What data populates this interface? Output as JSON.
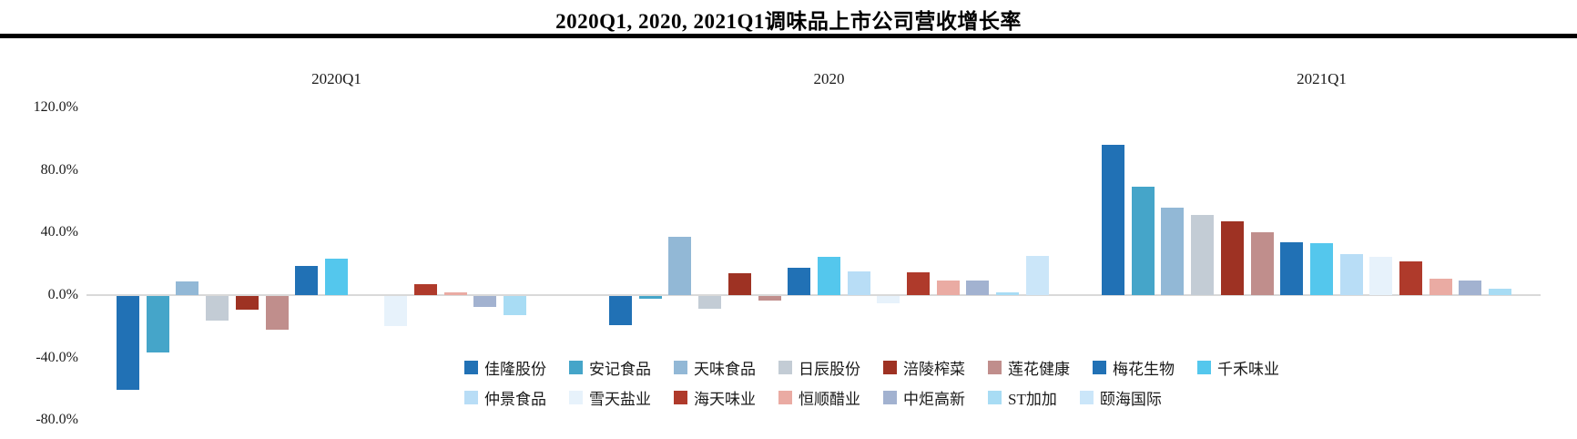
{
  "title": "2020Q1, 2020, 2021Q1调味品上市公司营收增长率",
  "chart_data": {
    "type": "bar",
    "title": "2020Q1, 2020, 2021Q1调味品上市公司营收增长率",
    "groups": [
      "2020Q1",
      "2020",
      "2021Q1"
    ],
    "unit": "percent",
    "ylim": [
      -80,
      120
    ],
    "grid": false,
    "legend_position": "bottom-center-two-rows",
    "axis_color": "#D9D9D9",
    "y_ticks": [
      {
        "label": "120.0%",
        "value": 120
      },
      {
        "label": "80.0%",
        "value": 80
      },
      {
        "label": "40.0%",
        "value": 40
      },
      {
        "label": "0.0%",
        "value": 0
      },
      {
        "label": "-40.0%",
        "value": -40
      },
      {
        "label": "-80.0%",
        "value": -80
      }
    ],
    "series": [
      {
        "name": "佳隆股份",
        "color": "#2171B5",
        "values": [
          -60,
          -18.5,
          96
        ]
      },
      {
        "name": "安记食品",
        "color": "#45A5C9",
        "values": [
          -36,
          -2,
          69
        ]
      },
      {
        "name": "天味食品",
        "color": "#92B8D6",
        "values": [
          9,
          37,
          56
        ]
      },
      {
        "name": "日辰股份",
        "color": "#C3CCD5",
        "values": [
          -15.5,
          -8,
          51.5
        ]
      },
      {
        "name": "涪陵榨菜",
        "color": "#9E3223",
        "values": [
          -9,
          14,
          47
        ]
      },
      {
        "name": "莲花健康",
        "color": "#C08E8C",
        "values": [
          -21.5,
          -3,
          40
        ]
      },
      {
        "name": "梅花生物",
        "color": "#2171B5",
        "values": [
          18.5,
          17.5,
          33.5
        ]
      },
      {
        "name": "千禾味业",
        "color": "#54C7ED",
        "values": [
          23.5,
          24.5,
          33
        ]
      },
      {
        "name": "仲景食品",
        "color": "#B8DDF6",
        "values": [
          null,
          15,
          26
        ]
      },
      {
        "name": "雪天盐业",
        "color": "#E7F2FB",
        "values": [
          -19,
          -4.5,
          24.5
        ]
      },
      {
        "name": "海天味业",
        "color": "#AF3A2B",
        "values": [
          7,
          14.5,
          21.5
        ]
      },
      {
        "name": "恒顺醋业",
        "color": "#EAABA3",
        "values": [
          2,
          9.5,
          10.5
        ]
      },
      {
        "name": "中炬高新",
        "color": "#A2B2D0",
        "values": [
          -7,
          9.5,
          9.5
        ]
      },
      {
        "name": "ST加加",
        "color": "#A8DCF4",
        "values": [
          -12,
          2,
          4
        ]
      },
      {
        "name": "颐海国际",
        "color": "#CBE6F9",
        "values": [
          null,
          25,
          null
        ]
      }
    ],
    "legend_rows": [
      [
        "佳隆股份",
        "安记食品",
        "天味食品",
        "日辰股份",
        "涪陵榨菜",
        "莲花健康",
        "梅花生物",
        "千禾味业"
      ],
      [
        "仲景食品",
        "雪天盐业",
        "海天味业",
        "恒顺醋业",
        "中炬高新",
        "ST加加",
        "颐海国际"
      ]
    ]
  }
}
